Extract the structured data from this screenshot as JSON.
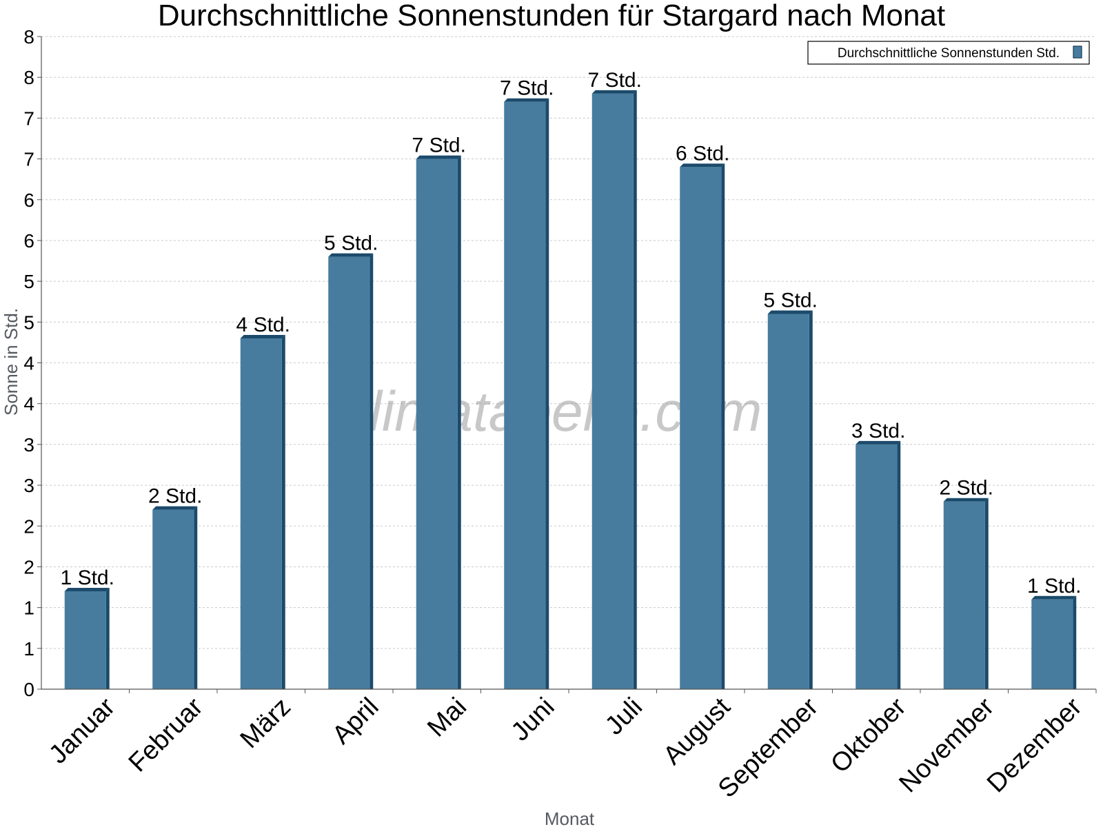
{
  "chart_data": {
    "type": "bar",
    "title": "Durchschnittliche Sonnenstunden für Stargard nach Monat",
    "xlabel": "Monat",
    "ylabel": "Sonne in Std.",
    "ylim": [
      0,
      8
    ],
    "y_tick_labels": [
      "0",
      "1",
      "1",
      "2",
      "2",
      "3",
      "3",
      "4",
      "4",
      "5",
      "5",
      "6",
      "6",
      "7",
      "7",
      "8",
      "8"
    ],
    "categories": [
      "Januar",
      "Februar",
      "März",
      "April",
      "Mai",
      "Juni",
      "Juli",
      "August",
      "September",
      "Oktober",
      "November",
      "Dezember"
    ],
    "series": [
      {
        "name": "Durchschnittliche Sonnenstunden Std.",
        "values": [
          1.2,
          2.2,
          4.3,
          5.3,
          6.5,
          7.2,
          7.3,
          6.4,
          4.6,
          3.0,
          2.3,
          1.1
        ],
        "labels": [
          "1 Std.",
          "2 Std.",
          "4 Std.",
          "5 Std.",
          "7 Std.",
          "7 Std.",
          "7 Std.",
          "6 Std.",
          "5 Std.",
          "3 Std.",
          "2 Std.",
          "1 Std."
        ]
      }
    ],
    "grid": true,
    "legend_position": "top-right",
    "watermark": "klimatabelle.com",
    "colors": {
      "bar": "#477c9e",
      "bar_dark": "#1b4a6b",
      "grid": "#c8c8c8",
      "axis": "#555555"
    }
  }
}
